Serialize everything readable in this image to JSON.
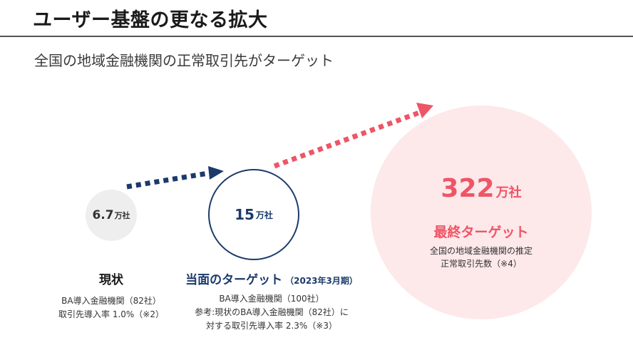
{
  "header": {
    "title": "ユーザー基盤の更なる拡大",
    "subtitle": "全国の地域金融機関の正常取引先がターゲット"
  },
  "colors": {
    "navy": "#1b3a6b",
    "pink": "#ee5566",
    "pink_fill": "#fde8ea",
    "gray_fill": "#eeeeee"
  },
  "stages": {
    "now": {
      "value": "6.7",
      "unit": "万社",
      "label": "現状",
      "desc1": "BA導入金融機関（82社）",
      "desc2": "取引先導入率 1.0%（※2）"
    },
    "current": {
      "value": "15",
      "unit": "万社",
      "label": "当面のターゲット",
      "label_note": "（2023年3月期）",
      "desc1": "BA導入金融機関（100社）",
      "desc2": "参考:現状のBA導入金融機関（82社）に",
      "desc3": "対する取引先導入率 2.3%（※3）"
    },
    "final": {
      "value": "322",
      "unit": "万社",
      "label": "最終ターゲット",
      "desc1": "全国の地域金融機関の推定",
      "desc2": "正常取引先数（※4）"
    }
  }
}
